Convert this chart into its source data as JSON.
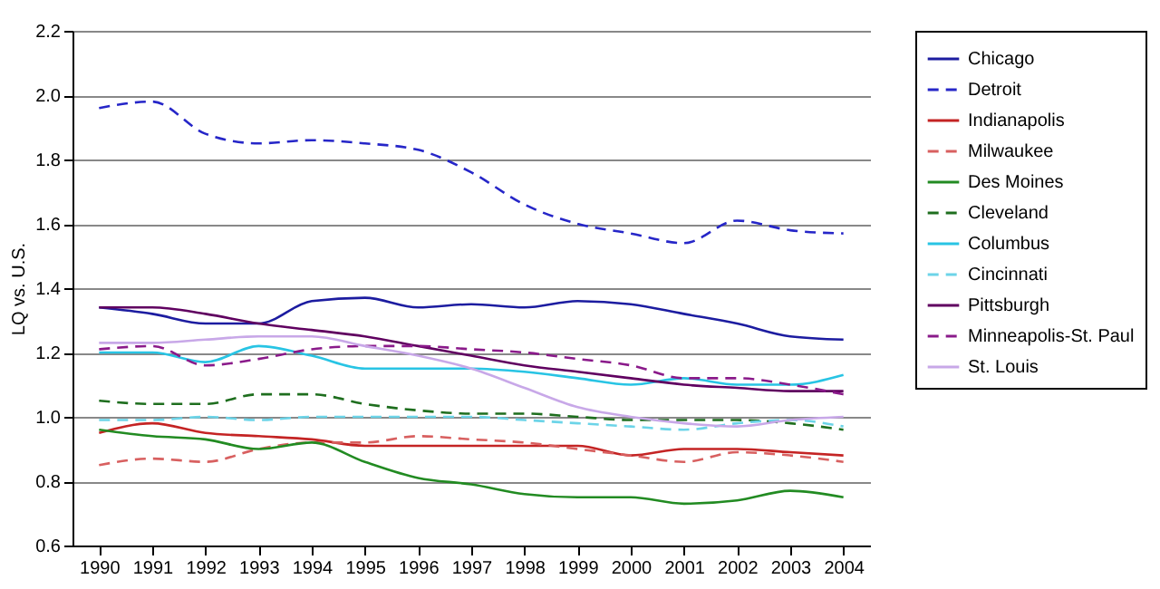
{
  "chart_data": {
    "type": "line",
    "ylabel": "LQ vs. U.S.",
    "categories": [
      "1990",
      "1991",
      "1992",
      "1993",
      "1994",
      "1995",
      "1996",
      "1997",
      "1998",
      "1999",
      "2000",
      "2001",
      "2002",
      "2003",
      "2004"
    ],
    "ylim": [
      0.6,
      2.2
    ],
    "yticks": [
      0.6,
      0.8,
      {
        "value": 1,
        "label": "1.0"
      },
      1.2,
      1.4,
      1.6,
      1.8,
      {
        "value": 2,
        "label": "2.0"
      },
      2.2
    ],
    "grid": "y",
    "legend": "right",
    "marker": "none",
    "series": [
      {
        "name": "Chicago",
        "color": "#1c1ca0",
        "line_style": "solid",
        "values": [
          1.34,
          1.32,
          1.29,
          1.29,
          1.36,
          1.37,
          1.34,
          1.35,
          1.34,
          1.36,
          1.35,
          1.32,
          1.29,
          1.25,
          1.24
        ]
      },
      {
        "name": "Detroit",
        "color": "#2626c8",
        "line_style": "dashed",
        "values": [
          1.96,
          1.98,
          1.88,
          1.85,
          1.86,
          1.85,
          1.83,
          1.76,
          1.66,
          1.6,
          1.57,
          1.54,
          1.61,
          1.58,
          1.57
        ]
      },
      {
        "name": "Indianapolis",
        "color": "#c42424",
        "line_style": "solid",
        "values": [
          0.95,
          0.98,
          0.95,
          0.94,
          0.93,
          0.91,
          0.91,
          0.91,
          0.91,
          0.91,
          0.88,
          0.9,
          0.9,
          0.89,
          0.88
        ]
      },
      {
        "name": "Milwaukee",
        "color": "#d86060",
        "line_style": "dashed",
        "values": [
          0.85,
          0.87,
          0.86,
          0.9,
          0.92,
          0.92,
          0.94,
          0.93,
          0.92,
          0.9,
          0.88,
          0.86,
          0.89,
          0.88,
          0.86
        ]
      },
      {
        "name": "Des Moines",
        "color": "#228b22",
        "line_style": "solid",
        "values": [
          0.96,
          0.94,
          0.93,
          0.9,
          0.92,
          0.86,
          0.81,
          0.79,
          0.76,
          0.75,
          0.75,
          0.73,
          0.74,
          0.77,
          0.75
        ]
      },
      {
        "name": "Cleveland",
        "color": "#1e6e1e",
        "line_style": "dashed",
        "values": [
          1.05,
          1.04,
          1.04,
          1.07,
          1.07,
          1.04,
          1.02,
          1.01,
          1.01,
          1.0,
          0.99,
          0.99,
          0.99,
          0.98,
          0.96
        ]
      },
      {
        "name": "Columbus",
        "color": "#28c4e4",
        "line_style": "solid",
        "values": [
          1.2,
          1.2,
          1.17,
          1.22,
          1.19,
          1.15,
          1.15,
          1.15,
          1.14,
          1.12,
          1.1,
          1.12,
          1.1,
          1.1,
          1.13
        ]
      },
      {
        "name": "Cincinnati",
        "color": "#6cd4e8",
        "line_style": "dashed",
        "values": [
          0.99,
          0.99,
          1.0,
          0.99,
          1.0,
          1.0,
          1.0,
          1.0,
          0.99,
          0.98,
          0.97,
          0.96,
          0.98,
          0.99,
          0.97
        ]
      },
      {
        "name": "Pittsburgh",
        "color": "#600060",
        "line_style": "solid",
        "values": [
          1.34,
          1.34,
          1.32,
          1.29,
          1.27,
          1.25,
          1.22,
          1.19,
          1.16,
          1.14,
          1.12,
          1.1,
          1.09,
          1.08,
          1.08
        ]
      },
      {
        "name": "Minneapolis-St. Paul",
        "color": "#8a1a8a",
        "line_style": "dashed",
        "values": [
          1.21,
          1.22,
          1.16,
          1.18,
          1.21,
          1.22,
          1.22,
          1.21,
          1.2,
          1.18,
          1.16,
          1.12,
          1.12,
          1.1,
          1.07
        ]
      },
      {
        "name": "St. Louis",
        "color": "#c8a8e8",
        "line_style": "solid",
        "values": [
          1.23,
          1.23,
          1.24,
          1.25,
          1.25,
          1.22,
          1.19,
          1.15,
          1.09,
          1.03,
          1.0,
          0.98,
          0.97,
          0.99,
          1.0
        ]
      }
    ]
  }
}
